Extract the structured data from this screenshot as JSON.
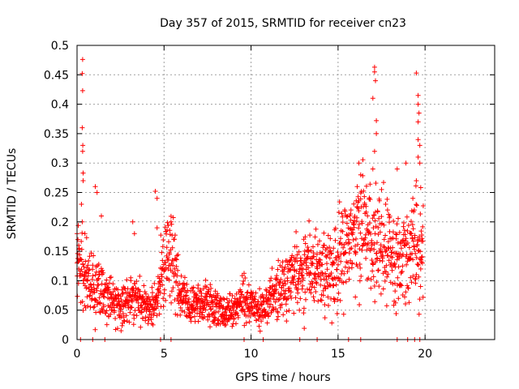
{
  "chart_data": {
    "type": "scatter",
    "title": "Day 357 of 2015, SRMTID for receiver cn23",
    "xlabel": "GPS time / hours",
    "ylabel": "SRMTID / TECUs",
    "xlim": [
      0,
      24
    ],
    "ylim": [
      0,
      0.5
    ],
    "xticks": [
      0,
      5,
      10,
      15,
      20
    ],
    "yticks": [
      0,
      0.05,
      0.1,
      0.15,
      0.2,
      0.25,
      0.3,
      0.35,
      0.4,
      0.45,
      0.5
    ],
    "ytick_labels": [
      "0",
      "0.05",
      "0.1",
      "0.15",
      "0.2",
      "0.25",
      "0.3",
      "0.35",
      "0.4",
      "0.45",
      "0.5"
    ],
    "grid": true,
    "legend": "none",
    "marker": "+",
    "color": "#ff0000",
    "series": [
      {
        "name": "SRMTID",
        "profile": [
          [
            0.0,
            0.12
          ],
          [
            0.5,
            0.11
          ],
          [
            1.0,
            0.09
          ],
          [
            1.5,
            0.08
          ],
          [
            2.0,
            0.065
          ],
          [
            2.5,
            0.06
          ],
          [
            3.0,
            0.065
          ],
          [
            3.5,
            0.07
          ],
          [
            4.0,
            0.05
          ],
          [
            4.5,
            0.06
          ],
          [
            5.0,
            0.13
          ],
          [
            5.5,
            0.13
          ],
          [
            6.0,
            0.07
          ],
          [
            6.5,
            0.06
          ],
          [
            7.0,
            0.06
          ],
          [
            7.5,
            0.065
          ],
          [
            8.0,
            0.055
          ],
          [
            8.5,
            0.05
          ],
          [
            9.0,
            0.05
          ],
          [
            9.5,
            0.075
          ],
          [
            10.0,
            0.06
          ],
          [
            10.5,
            0.05
          ],
          [
            11.0,
            0.07
          ],
          [
            11.5,
            0.09
          ],
          [
            12.0,
            0.1
          ],
          [
            12.5,
            0.11
          ],
          [
            13.0,
            0.11
          ],
          [
            13.5,
            0.12
          ],
          [
            14.0,
            0.12
          ],
          [
            14.5,
            0.11
          ],
          [
            15.0,
            0.13
          ],
          [
            15.5,
            0.16
          ],
          [
            16.0,
            0.18
          ],
          [
            16.5,
            0.2
          ],
          [
            17.0,
            0.17
          ],
          [
            17.5,
            0.17
          ],
          [
            18.0,
            0.15
          ],
          [
            18.5,
            0.14
          ],
          [
            19.0,
            0.14
          ],
          [
            19.5,
            0.16
          ],
          [
            19.9,
            0.15
          ]
        ],
        "outliers": [
          [
            0.32,
            0.476
          ],
          [
            0.3,
            0.452
          ],
          [
            0.32,
            0.423
          ],
          [
            0.3,
            0.36
          ],
          [
            0.33,
            0.33
          ],
          [
            0.32,
            0.32
          ],
          [
            0.35,
            0.283
          ],
          [
            0.35,
            0.27
          ],
          [
            0.25,
            0.23
          ],
          [
            0.3,
            0.2
          ],
          [
            0.45,
            0.18
          ],
          [
            1.05,
            0.26
          ],
          [
            1.15,
            0.25
          ],
          [
            1.4,
            0.21
          ],
          [
            3.2,
            0.2
          ],
          [
            3.3,
            0.18
          ],
          [
            4.5,
            0.252
          ],
          [
            4.6,
            0.24
          ],
          [
            4.6,
            0.19
          ],
          [
            5.4,
            0.2
          ],
          [
            16.2,
            0.3
          ],
          [
            16.3,
            0.28
          ],
          [
            16.1,
            0.26
          ],
          [
            17.1,
            0.463
          ],
          [
            17.1,
            0.455
          ],
          [
            17.15,
            0.44
          ],
          [
            17.0,
            0.41
          ],
          [
            17.2,
            0.372
          ],
          [
            17.2,
            0.35
          ],
          [
            17.1,
            0.32
          ],
          [
            17.0,
            0.29
          ],
          [
            17.5,
            0.255
          ],
          [
            18.4,
            0.29
          ],
          [
            18.9,
            0.3
          ],
          [
            19.5,
            0.453
          ],
          [
            19.6,
            0.415
          ],
          [
            19.6,
            0.4
          ],
          [
            19.65,
            0.385
          ],
          [
            19.6,
            0.37
          ],
          [
            19.6,
            0.34
          ],
          [
            19.7,
            0.33
          ],
          [
            19.6,
            0.31
          ],
          [
            19.7,
            0.3
          ],
          [
            19.5,
            0.27
          ],
          [
            19.3,
            0.24
          ],
          [
            19.8,
            0.14
          ],
          [
            19.75,
            0.12
          ],
          [
            0.0,
            0.18
          ],
          [
            0.05,
            0.17
          ],
          [
            0.1,
            0.16
          ]
        ],
        "zero_points": [
          0.2,
          0.9,
          1.6,
          4.8,
          5.4,
          9.6,
          10.7,
          12.8,
          13.8,
          15.6,
          16.3,
          18.4,
          19.0,
          19.4,
          19.7
        ]
      }
    ]
  }
}
